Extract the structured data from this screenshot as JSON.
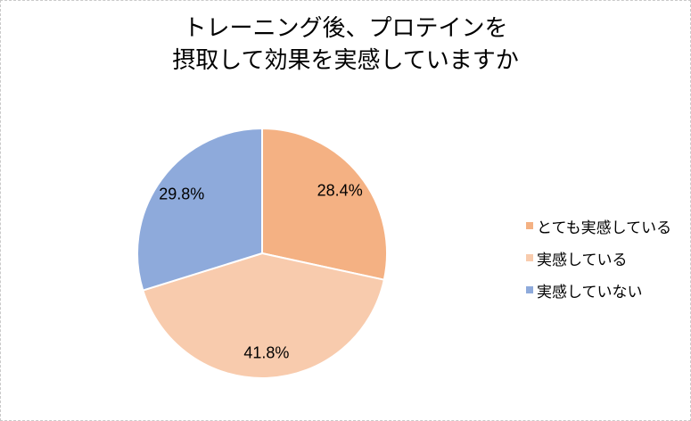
{
  "title_lines": [
    "トレーニング後、プロテインを",
    "摂取して効果を実感していますか"
  ],
  "chart_data": {
    "type": "pie",
    "title": "トレーニング後、プロテインを摂取して効果を実感していますか",
    "categories": [
      "とても実感している",
      "実感している",
      "実感していない"
    ],
    "values": [
      28.4,
      41.8,
      29.8
    ],
    "data_labels": [
      "28.4%",
      "41.8%",
      "29.8%"
    ],
    "colors": [
      "#F4B183",
      "#F8CBAD",
      "#8EAADB"
    ],
    "slice_border_color": "#FFFFFF",
    "start_angle_deg": 0,
    "direction": "clockwise",
    "legend_position": "right",
    "legend_entries": [
      "とても実感している",
      "実感している",
      "実感していない"
    ],
    "background_color": "#FFFFFF",
    "text_color": "#000000",
    "border_style": "dashed",
    "border_color": "#C9C9C9"
  }
}
